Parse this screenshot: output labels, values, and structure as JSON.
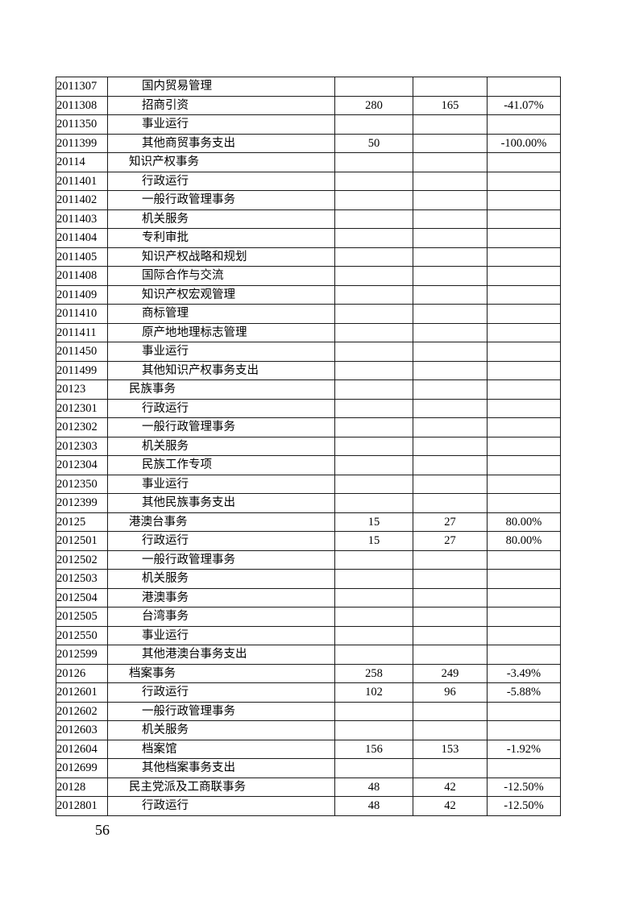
{
  "page": {
    "number": "56"
  },
  "table": {
    "rows": [
      {
        "code": "2011307",
        "name": "国内贸易管理",
        "level": 2,
        "value_a": "",
        "value_b": "",
        "change_pct": ""
      },
      {
        "code": "2011308",
        "name": "招商引资",
        "level": 2,
        "value_a": "280",
        "value_b": "165",
        "change_pct": "-41.07%"
      },
      {
        "code": "2011350",
        "name": "事业运行",
        "level": 2,
        "value_a": "",
        "value_b": "",
        "change_pct": ""
      },
      {
        "code": "2011399",
        "name": "其他商贸事务支出",
        "level": 2,
        "value_a": "50",
        "value_b": "",
        "change_pct": "-100.00%"
      },
      {
        "code": "20114",
        "name": "知识产权事务",
        "level": 1,
        "value_a": "",
        "value_b": "",
        "change_pct": ""
      },
      {
        "code": "2011401",
        "name": "行政运行",
        "level": 2,
        "value_a": "",
        "value_b": "",
        "change_pct": ""
      },
      {
        "code": "2011402",
        "name": "一般行政管理事务",
        "level": 2,
        "value_a": "",
        "value_b": "",
        "change_pct": ""
      },
      {
        "code": "2011403",
        "name": "机关服务",
        "level": 2,
        "value_a": "",
        "value_b": "",
        "change_pct": ""
      },
      {
        "code": "2011404",
        "name": "专利审批",
        "level": 2,
        "value_a": "",
        "value_b": "",
        "change_pct": ""
      },
      {
        "code": "2011405",
        "name": "知识产权战略和规划",
        "level": 2,
        "value_a": "",
        "value_b": "",
        "change_pct": ""
      },
      {
        "code": "2011408",
        "name": "国际合作与交流",
        "level": 2,
        "value_a": "",
        "value_b": "",
        "change_pct": ""
      },
      {
        "code": "2011409",
        "name": "知识产权宏观管理",
        "level": 2,
        "value_a": "",
        "value_b": "",
        "change_pct": ""
      },
      {
        "code": "2011410",
        "name": "商标管理",
        "level": 2,
        "value_a": "",
        "value_b": "",
        "change_pct": ""
      },
      {
        "code": "2011411",
        "name": "原产地地理标志管理",
        "level": 2,
        "value_a": "",
        "value_b": "",
        "change_pct": ""
      },
      {
        "code": "2011450",
        "name": "事业运行",
        "level": 2,
        "value_a": "",
        "value_b": "",
        "change_pct": ""
      },
      {
        "code": "2011499",
        "name": "其他知识产权事务支出",
        "level": 2,
        "value_a": "",
        "value_b": "",
        "change_pct": ""
      },
      {
        "code": "20123",
        "name": "民族事务",
        "level": 1,
        "value_a": "",
        "value_b": "",
        "change_pct": ""
      },
      {
        "code": "2012301",
        "name": "行政运行",
        "level": 2,
        "value_a": "",
        "value_b": "",
        "change_pct": ""
      },
      {
        "code": "2012302",
        "name": "一般行政管理事务",
        "level": 2,
        "value_a": "",
        "value_b": "",
        "change_pct": ""
      },
      {
        "code": "2012303",
        "name": "机关服务",
        "level": 2,
        "value_a": "",
        "value_b": "",
        "change_pct": ""
      },
      {
        "code": "2012304",
        "name": "民族工作专项",
        "level": 2,
        "value_a": "",
        "value_b": "",
        "change_pct": ""
      },
      {
        "code": "2012350",
        "name": "事业运行",
        "level": 2,
        "value_a": "",
        "value_b": "",
        "change_pct": ""
      },
      {
        "code": "2012399",
        "name": "其他民族事务支出",
        "level": 2,
        "value_a": "",
        "value_b": "",
        "change_pct": ""
      },
      {
        "code": "20125",
        "name": "港澳台事务",
        "level": 1,
        "value_a": "15",
        "value_b": "27",
        "change_pct": "80.00%"
      },
      {
        "code": "2012501",
        "name": "行政运行",
        "level": 2,
        "value_a": "15",
        "value_b": "27",
        "change_pct": "80.00%"
      },
      {
        "code": "2012502",
        "name": "一般行政管理事务",
        "level": 2,
        "value_a": "",
        "value_b": "",
        "change_pct": ""
      },
      {
        "code": "2012503",
        "name": "机关服务",
        "level": 2,
        "value_a": "",
        "value_b": "",
        "change_pct": ""
      },
      {
        "code": "2012504",
        "name": "港澳事务",
        "level": 2,
        "value_a": "",
        "value_b": "",
        "change_pct": ""
      },
      {
        "code": "2012505",
        "name": "台湾事务",
        "level": 2,
        "value_a": "",
        "value_b": "",
        "change_pct": ""
      },
      {
        "code": "2012550",
        "name": "事业运行",
        "level": 2,
        "value_a": "",
        "value_b": "",
        "change_pct": ""
      },
      {
        "code": "2012599",
        "name": "其他港澳台事务支出",
        "level": 2,
        "value_a": "",
        "value_b": "",
        "change_pct": ""
      },
      {
        "code": "20126",
        "name": "档案事务",
        "level": 1,
        "value_a": "258",
        "value_b": "249",
        "change_pct": "-3.49%"
      },
      {
        "code": "2012601",
        "name": "行政运行",
        "level": 2,
        "value_a": "102",
        "value_b": "96",
        "change_pct": "-5.88%"
      },
      {
        "code": "2012602",
        "name": "一般行政管理事务",
        "level": 2,
        "value_a": "",
        "value_b": "",
        "change_pct": ""
      },
      {
        "code": "2012603",
        "name": "机关服务",
        "level": 2,
        "value_a": "",
        "value_b": "",
        "change_pct": ""
      },
      {
        "code": "2012604",
        "name": "档案馆",
        "level": 2,
        "value_a": "156",
        "value_b": "153",
        "change_pct": "-1.92%"
      },
      {
        "code": "2012699",
        "name": "其他档案事务支出",
        "level": 2,
        "value_a": "",
        "value_b": "",
        "change_pct": ""
      },
      {
        "code": "20128",
        "name": "民主党派及工商联事务",
        "level": 1,
        "value_a": "48",
        "value_b": "42",
        "change_pct": "-12.50%"
      },
      {
        "code": "2012801",
        "name": "行政运行",
        "level": 2,
        "value_a": "48",
        "value_b": "42",
        "change_pct": "-12.50%"
      }
    ]
  }
}
